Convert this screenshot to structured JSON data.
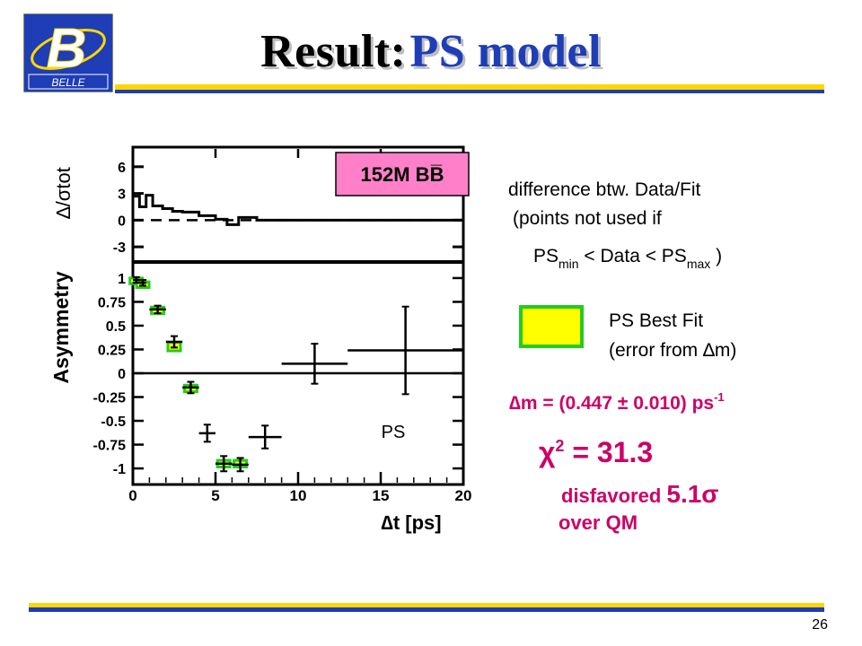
{
  "slide": {
    "title_prefix": "Result:",
    "title_main": "PS model",
    "logo_text": "BELLE",
    "page_number": "26",
    "colors": {
      "title_accent": "#1e3db6",
      "rule_yellow": "#ffd700",
      "rule_blue": "#1e3db6",
      "badge_fill": "#ff80c8",
      "best_fit_fill": "#ffff00",
      "best_fit_border": "#22cc22"
    }
  },
  "annotations": {
    "badge": "152M BB̅",
    "diff_line1": "difference btw. Data/Fit",
    "diff_line2": "(points not used if",
    "diff_ps1": "PS",
    "diff_min": "min",
    "diff_mid": " < Data < PS",
    "diff_max": "max",
    "diff_end": " )",
    "legend_label1": "PS Best Fit",
    "legend_label2": "(error from ∆m)",
    "dm_text": "∆m = (0.447 ± 0.010) ps",
    "dm_sup": "-1",
    "chi2_text": "χ",
    "chi2_sup": "2",
    "chi2_rest": " = 31.3",
    "disfavored": "disfavored ",
    "disfavored_sig": "5.1σ",
    "over_qm": "over QM"
  },
  "chart_data": [
    {
      "type": "line",
      "panel": "residual",
      "ylabel": "∆/σtot",
      "ylim": [
        -4.5,
        8
      ],
      "xlim": [
        0,
        20
      ],
      "ytick_labels": [
        "6",
        "3",
        "0",
        "-3"
      ],
      "yticks": [
        6,
        3,
        0,
        -3
      ],
      "series": [
        {
          "edges": [
            0,
            0.4,
            0.8,
            1.2,
            1.8,
            2.4,
            3,
            4,
            5,
            5.7,
            6.4,
            7.5,
            20
          ],
          "values": [
            2.7,
            1.5,
            2.8,
            1.6,
            1.3,
            1.0,
            0.9,
            0.5,
            0.1,
            -0.5,
            0.3,
            0.0
          ]
        }
      ],
      "reference_line": 0
    },
    {
      "type": "scatter",
      "panel": "asymmetry",
      "ylabel": "Asymmetry",
      "xlabel": "∆t [ps]",
      "xlim": [
        0,
        20
      ],
      "ylim": [
        -1.15,
        1.15
      ],
      "xtick_labels": [
        "0",
        "5",
        "10",
        "15",
        "20"
      ],
      "xticks": [
        0,
        5,
        10,
        15,
        20
      ],
      "ytick_labels": [
        "1",
        "0.75",
        "0.5",
        "0.25",
        "0",
        "-0.25",
        "-0.5",
        "-0.75",
        "-1"
      ],
      "yticks": [
        1,
        0.75,
        0.5,
        0.25,
        0,
        -0.25,
        -0.5,
        -0.75,
        -1
      ],
      "panel_label": "PS",
      "data_points": [
        {
          "x": 0.2,
          "xerr": 0.2,
          "y": 0.98,
          "yerr": 0.03
        },
        {
          "x": 0.6,
          "xerr": 0.2,
          "y": 0.95,
          "yerr": 0.03
        },
        {
          "x": 1.5,
          "xerr": 0.5,
          "y": 0.67,
          "yerr": 0.04
        },
        {
          "x": 2.5,
          "xerr": 0.5,
          "y": 0.33,
          "yerr": 0.06
        },
        {
          "x": 3.5,
          "xerr": 0.5,
          "y": -0.15,
          "yerr": 0.06
        },
        {
          "x": 4.5,
          "xerr": 0.5,
          "y": -0.63,
          "yerr": 0.09
        },
        {
          "x": 5.5,
          "xerr": 0.5,
          "y": -0.95,
          "yerr": 0.08
        },
        {
          "x": 6.5,
          "xerr": 0.5,
          "y": -0.96,
          "yerr": 0.07
        },
        {
          "x": 8.0,
          "xerr": 1.0,
          "y": -0.67,
          "yerr": 0.12
        },
        {
          "x": 11.0,
          "xerr": 2.0,
          "y": 0.1,
          "yerr": 0.21
        },
        {
          "x": 16.5,
          "xerr": 3.5,
          "y": 0.24,
          "yerr": 0.46
        }
      ],
      "best_fit_boxes": [
        {
          "x": 0.2,
          "y": 0.97,
          "h": 0.06
        },
        {
          "x": 0.6,
          "y": 0.93,
          "h": 0.06
        },
        {
          "x": 1.5,
          "y": 0.66,
          "h": 0.07
        },
        {
          "x": 2.5,
          "y": 0.28,
          "h": 0.09
        },
        {
          "x": 3.5,
          "y": -0.16,
          "h": 0.07
        },
        {
          "x": 5.5,
          "y": -0.95,
          "h": 0.07
        },
        {
          "x": 6.5,
          "y": -0.95,
          "h": 0.07
        }
      ],
      "zero_line": 0
    }
  ]
}
